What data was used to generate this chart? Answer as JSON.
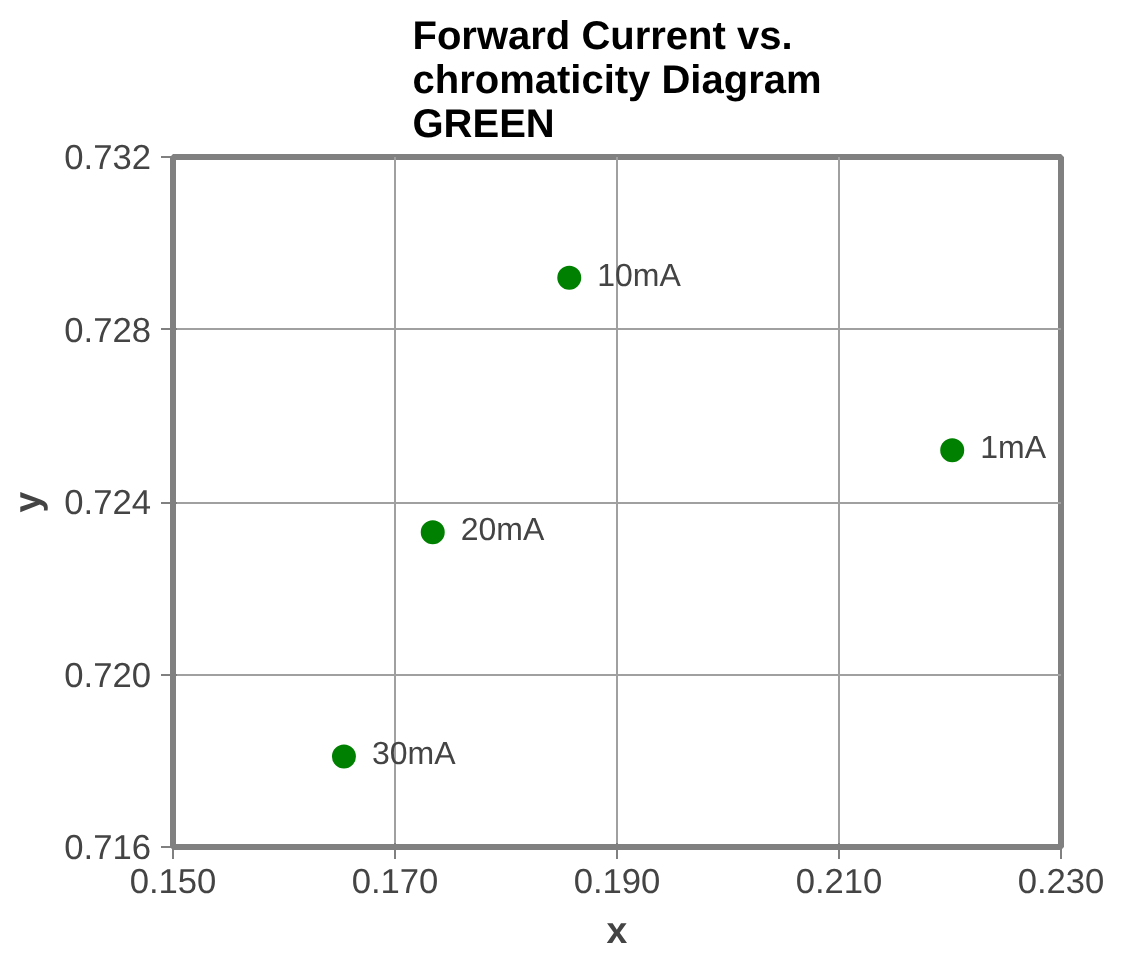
{
  "chart_data": {
    "type": "scatter",
    "title": "Forward Current vs.\nchromaticity Diagram\nGREEN",
    "xlabel": "x",
    "ylabel": "y",
    "x": [
      0.2202,
      0.1857,
      0.1734,
      0.1654
    ],
    "series": [
      {
        "color": "#008000",
        "values": [
          0.7252,
          0.7292,
          0.7233,
          0.7181
        ]
      }
    ],
    "xlim": [
      0.15,
      0.23
    ],
    "xticks": [
      {
        "value": 0.15,
        "label": "0.150"
      },
      {
        "value": 0.17,
        "label": "0.170"
      },
      {
        "value": 0.19,
        "label": "0.190"
      },
      {
        "value": 0.21,
        "label": "0.210"
      },
      {
        "value": 0.23,
        "label": "0.230"
      }
    ],
    "ylim": [
      0.716,
      0.732
    ],
    "yticks": [
      {
        "value": 0.716,
        "label": "0.716"
      },
      {
        "value": 0.72,
        "label": "0.720"
      },
      {
        "value": 0.724,
        "label": "0.724"
      },
      {
        "value": 0.728,
        "label": "0.728"
      },
      {
        "value": 0.732,
        "label": "0.732"
      }
    ],
    "annotations": [
      {
        "text": "1mA",
        "x": 0.2202,
        "y": 0.7252
      },
      {
        "text": "10mA",
        "x": 0.1857,
        "y": 0.7292
      },
      {
        "text": "20mA",
        "x": 0.1734,
        "y": 0.7233
      },
      {
        "text": "30mA",
        "x": 0.1654,
        "y": 0.7181
      }
    ],
    "grid": true,
    "marker": "circle"
  }
}
